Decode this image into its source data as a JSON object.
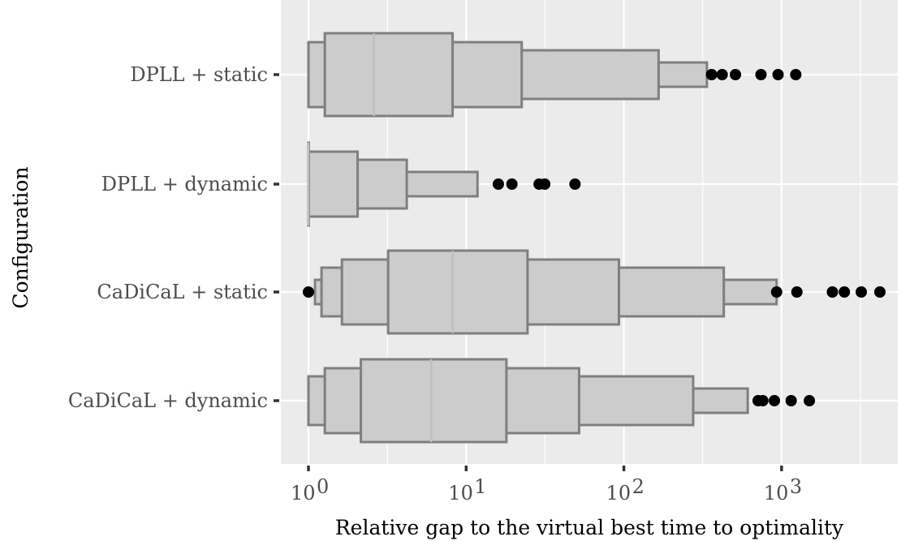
{
  "chart_data": {
    "type": "letter-value boxplot",
    "orientation": "horizontal",
    "xlabel": "Relative gap to the virtual best time to optimality",
    "ylabel": "Configuration",
    "x_scale": "log10",
    "xlim": [
      0.82,
      5600
    ],
    "x_ticks": [
      {
        "base": "10",
        "exp": "0",
        "value": 1
      },
      {
        "base": "10",
        "exp": "1",
        "value": 10
      },
      {
        "base": "10",
        "exp": "2",
        "value": 100
      },
      {
        "base": "10",
        "exp": "3",
        "value": 1000
      }
    ],
    "grid": true,
    "colors": {
      "panel": "#EBEBEB",
      "box_fill": "#CCCCCC",
      "box_stroke": "#7F7F7F",
      "median": "#BFBFBF",
      "outlier": "#000000"
    },
    "categories": [
      "DPLL + static",
      "DPLL + dynamic",
      "CaDiCaL + static",
      "CaDiCaL + dynamic"
    ],
    "series": [
      {
        "category": "DPLL + static",
        "median": 2.6,
        "boxes": [
          [
            1.27,
            8.2
          ],
          [
            1.0,
            22.5
          ],
          [
            1.0,
            166
          ],
          [
            1.0,
            336
          ]
        ],
        "outliers": [
          360,
          420,
          510,
          740,
          950,
          1230
        ]
      },
      {
        "category": "DPLL + dynamic",
        "median": 1.0,
        "boxes": [
          [
            1.0,
            1.0
          ],
          [
            1.0,
            2.05
          ],
          [
            1.0,
            4.2
          ],
          [
            1.0,
            11.8
          ]
        ],
        "outliers": [
          16,
          19.5,
          29,
          31.5,
          49
        ]
      },
      {
        "category": "CaDiCaL + static",
        "median": 8.2,
        "boxes": [
          [
            3.2,
            24.5
          ],
          [
            1.63,
            93
          ],
          [
            1.21,
            430
          ],
          [
            1.1,
            930
          ]
        ],
        "outliers": [
          1.0,
          930,
          1250,
          2100,
          2500,
          3200,
          4200
        ]
      },
      {
        "category": "CaDiCaL + dynamic",
        "median": 6.0,
        "boxes": [
          [
            2.15,
            18
          ],
          [
            1.27,
            52
          ],
          [
            1.0,
            275
          ],
          [
            1.0,
            610
          ]
        ],
        "outliers": [
          710,
          760,
          900,
          1150,
          1500
        ]
      }
    ]
  }
}
